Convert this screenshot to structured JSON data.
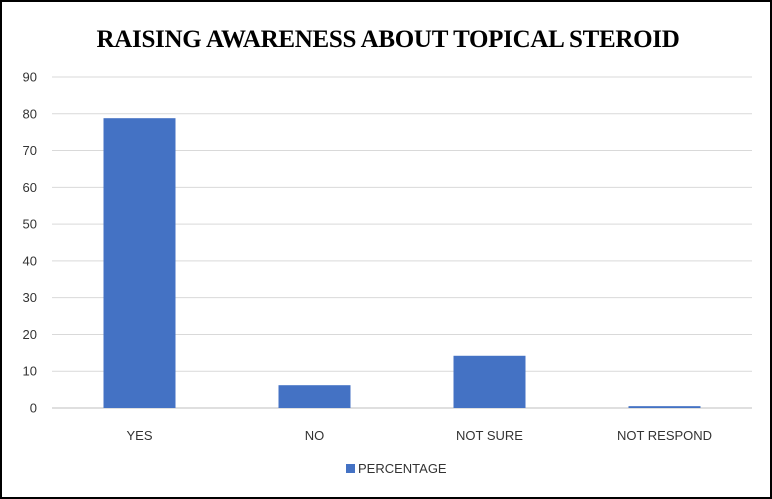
{
  "chart_data": {
    "type": "bar",
    "title": "RAISING AWARENESS ABOUT TOPICAL STEROID",
    "categories": [
      "YES",
      "NO",
      "NOT SURE",
      "NOT RESPOND"
    ],
    "series": [
      {
        "name": "PERCENTAGE",
        "values": [
          78.8,
          6.2,
          14.2,
          0.5
        ],
        "color": "#4472C4"
      }
    ],
    "ylim": [
      0,
      90
    ],
    "yticks": [
      0,
      10,
      20,
      30,
      40,
      50,
      60,
      70,
      80,
      90
    ],
    "grid": true,
    "legend_position": "bottom"
  }
}
